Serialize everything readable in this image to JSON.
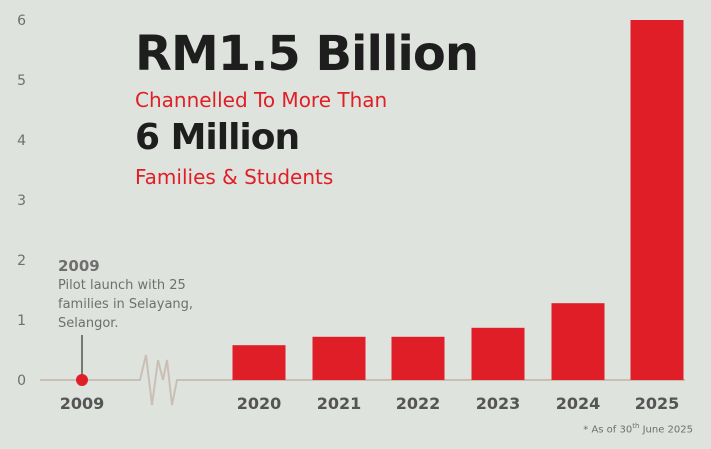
{
  "chart_data": {
    "type": "bar",
    "categories": [
      "2009",
      "2020",
      "2021",
      "2022",
      "2023",
      "2024",
      "2025"
    ],
    "values": [
      0,
      0.58,
      0.72,
      0.72,
      0.87,
      1.28,
      6.0
    ],
    "ylim": [
      0,
      6
    ],
    "yticks": [
      "0",
      "1",
      "2",
      "3",
      "4",
      "5",
      "6"
    ],
    "grid": false,
    "bar_color": "#e01e27"
  },
  "headline": {
    "amount": "RM1.5 Billion",
    "line2": "Channelled To More Than",
    "count": "6 Million",
    "line4": "Families & Students"
  },
  "annotation": {
    "year": "2009",
    "text": "Pilot launch with 25 families in Selayang, Selangor."
  },
  "footnote": {
    "prefix": "* As of 30",
    "sup": "th",
    "suffix": " June 2025"
  },
  "colors": {
    "background": "#dfe3dd",
    "accent": "#e01e27",
    "axis": "#c9bfb5",
    "text_dark": "#1e1e1e",
    "text_muted": "#6f6f6f"
  }
}
